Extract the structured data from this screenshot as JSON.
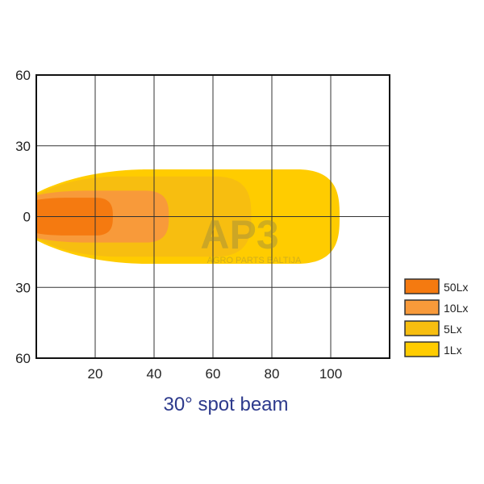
{
  "chart_data": {
    "type": "area",
    "title": "30°  spot beam",
    "xlabel": "",
    "ylabel": "",
    "xlim": [
      0,
      120
    ],
    "ylim": [
      -60,
      60
    ],
    "x_ticks": [
      "20",
      "40",
      "60",
      "80",
      "100"
    ],
    "x_tick_values": [
      20,
      40,
      60,
      80,
      100
    ],
    "y_ticks": [
      "60",
      "30",
      "0",
      "30",
      "60"
    ],
    "y_tick_values": [
      60,
      30,
      0,
      -30,
      -60
    ],
    "grid": true,
    "legend_position": "right",
    "series": [
      {
        "name": "1Lx",
        "color": "#FFCC00",
        "reach_m": 103,
        "half_width_at_origin_m": 10,
        "max_half_width_m": 20
      },
      {
        "name": "5Lx",
        "color": "#F7BE10",
        "reach_m": 73,
        "half_width_at_origin_m": 9,
        "max_half_width_m": 17
      },
      {
        "name": "10Lx",
        "color": "#F89A3A",
        "reach_m": 45,
        "half_width_at_origin_m": 9,
        "max_half_width_m": 11
      },
      {
        "name": "50Lx",
        "color": "#F57A10",
        "reach_m": 26,
        "half_width_at_origin_m": 7,
        "max_half_width_m": 8
      }
    ],
    "legend": [
      {
        "label": "50Lx",
        "color": "#F57A10"
      },
      {
        "label": "10Lx",
        "color": "#F89A3A"
      },
      {
        "label": "5Lx",
        "color": "#F7BE10"
      },
      {
        "label": "1Lx",
        "color": "#FFCC00"
      }
    ]
  },
  "watermark": {
    "logo": "AP3",
    "text": "AGRO PARTS BALTIJA"
  }
}
